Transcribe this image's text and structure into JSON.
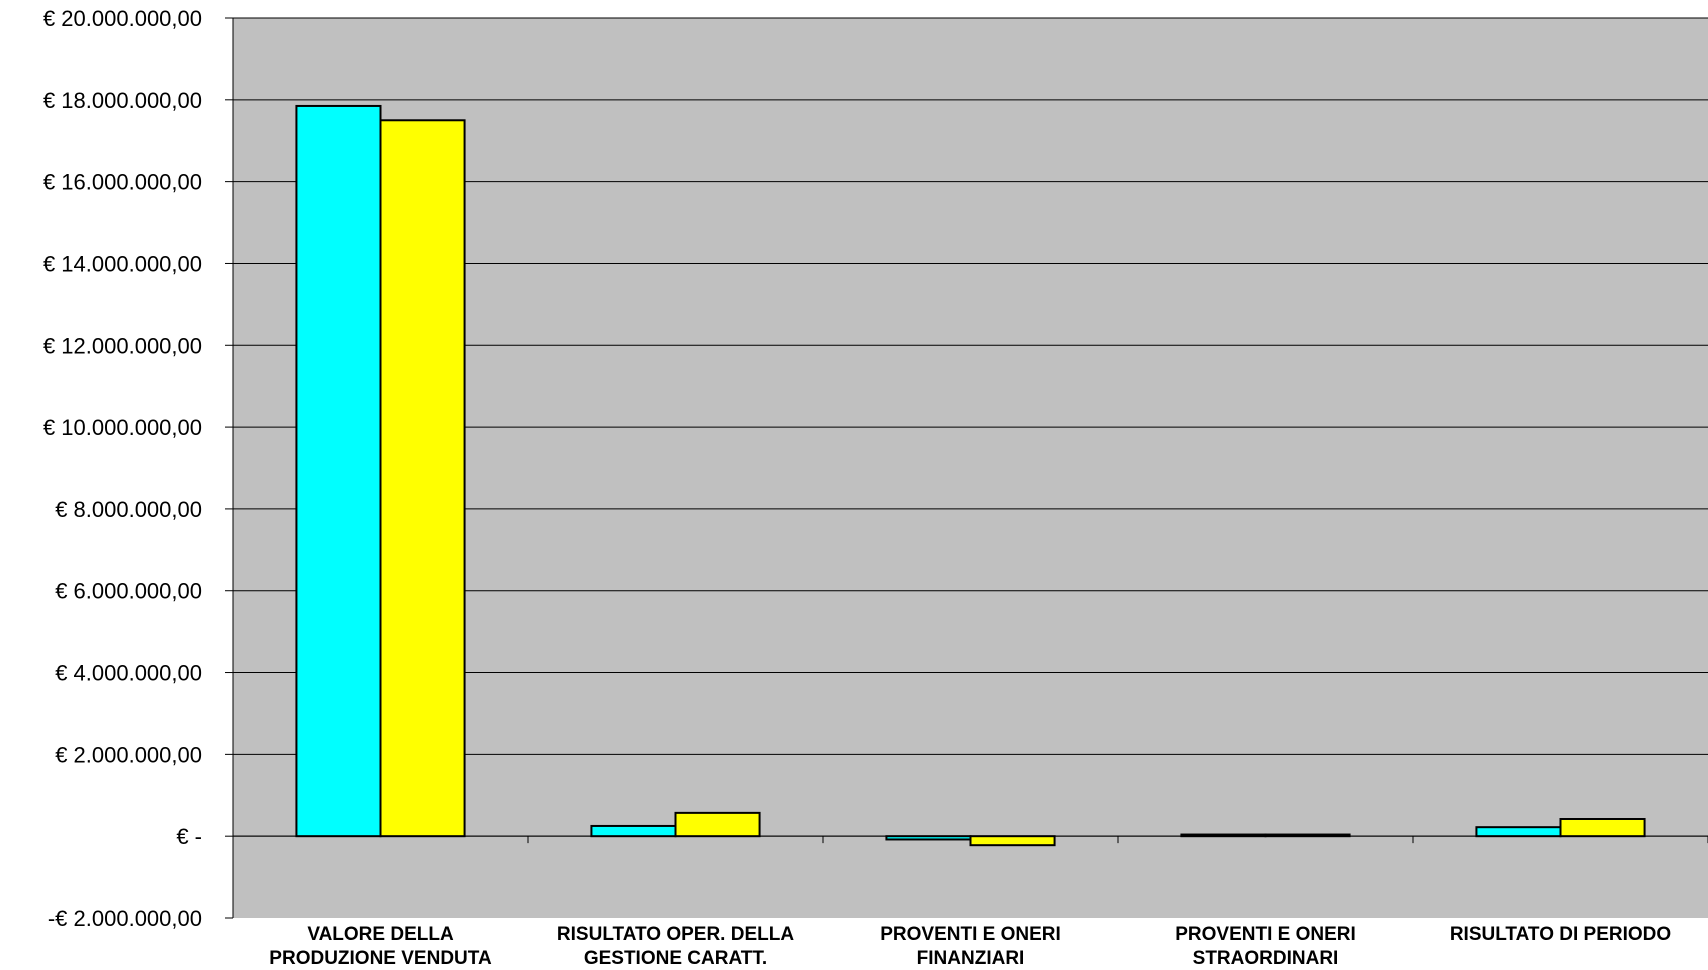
{
  "chart_data": {
    "type": "bar",
    "categories": [
      [
        "VALORE DELLA",
        "PRODUZIONE VENDUTA"
      ],
      [
        "RISULTATO  OPER. DELLA",
        "GESTIONE CARATT."
      ],
      [
        "PROVENTI E ONERI",
        "FINANZIARI"
      ],
      [
        "PROVENTI E ONERI",
        "STRAORDINARI"
      ],
      [
        "RISULTATO DI PERIODO"
      ]
    ],
    "series": [
      {
        "values": [
          17850000,
          250000,
          -80000,
          40000,
          220000
        ],
        "color": "#00FFFF"
      },
      {
        "values": [
          17500000,
          570000,
          -220000,
          40000,
          420000
        ],
        "color": "#FFFF00"
      }
    ],
    "ylim": [
      -2000000,
      20000000
    ],
    "yticks": [
      {
        "value": 20000000,
        "label": "€ 20.000.000,00"
      },
      {
        "value": 18000000,
        "label": "€ 18.000.000,00"
      },
      {
        "value": 16000000,
        "label": "€ 16.000.000,00"
      },
      {
        "value": 14000000,
        "label": "€ 14.000.000,00"
      },
      {
        "value": 12000000,
        "label": "€ 12.000.000,00"
      },
      {
        "value": 10000000,
        "label": "€ 10.000.000,00"
      },
      {
        "value": 8000000,
        "label": "€ 8.000.000,00"
      },
      {
        "value": 6000000,
        "label": "€ 6.000.000,00"
      },
      {
        "value": 4000000,
        "label": "€ 4.000.000,00"
      },
      {
        "value": 2000000,
        "label": "€ 2.000.000,00"
      },
      {
        "value": 0,
        "label": "€ -"
      },
      {
        "value": -2000000,
        "label": "-€ 2.000.000,00"
      }
    ],
    "grid": true,
    "plot_background": "#C0C0C0"
  }
}
